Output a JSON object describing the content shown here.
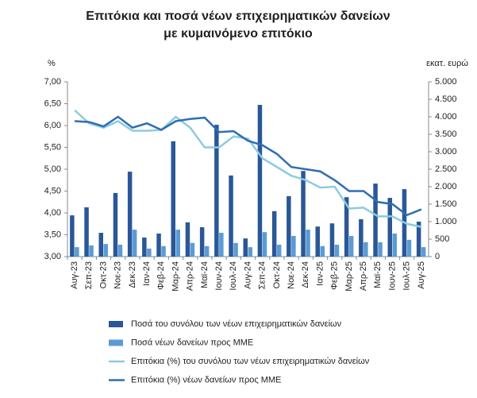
{
  "chart_data": {
    "type": "bar",
    "title": "Επιτόκια και ποσά νέων επιχειρηματικών δανείων με κυμαινόμενο επιτόκιο",
    "y_label": "%",
    "y2_label": "εκατ. ευρώ",
    "categories": [
      "Αυγ-23",
      "Σεπ-23",
      "Οκτ-23",
      "Νοε-23",
      "Δεκ-23",
      "Ιαν-24",
      "Φεβ-24",
      "Μαρ-24",
      "Απρ-24",
      "Μαϊ-24",
      "Ιουν-24",
      "Ιουλ-24",
      "Αυγ-24",
      "Σεπ-24",
      "Οκτ-24",
      "Νοε-24",
      "Δεκ-24",
      "Ιαν-25",
      "Φεβ-25",
      "Μαρ-25",
      "Απρ-25",
      "Μαϊ-25",
      "Ιουν-25",
      "Ιουλ-25",
      "Αυγ-25"
    ],
    "ylim": [
      3,
      7
    ],
    "yticks": [
      {
        "value": 3,
        "label": "3,00"
      },
      {
        "value": 3.5,
        "label": "3,50"
      },
      {
        "value": 4,
        "label": "4,00"
      },
      {
        "value": 4.5,
        "label": "4,50"
      },
      {
        "value": 5,
        "label": "5,00"
      },
      {
        "value": 5.5,
        "label": "5,50"
      },
      {
        "value": 6,
        "label": "6,00"
      },
      {
        "value": 6.5,
        "label": "6,50"
      },
      {
        "value": 7,
        "label": "7,00"
      }
    ],
    "y2lim": [
      0,
      5000
    ],
    "y2ticks": [
      0,
      500,
      {
        "value": 1000,
        "label": "1.000"
      },
      {
        "value": 1500,
        "label": "1.500"
      },
      {
        "value": 2000,
        "label": "2.000"
      },
      {
        "value": 2500,
        "label": "2.500"
      },
      {
        "value": 3000,
        "label": "3.000"
      },
      {
        "value": 3500,
        "label": "3.500"
      },
      {
        "value": 4000,
        "label": "4.000"
      },
      {
        "value": 4500,
        "label": "4.500"
      },
      {
        "value": 5000,
        "label": "5.000"
      }
    ],
    "legend": "bottom",
    "series": [
      {
        "name": "Ποσά του συνόλου των νέων επιχειρηματικών δανείων",
        "type": "bar",
        "axis": "y2",
        "color": "#2b5797",
        "values": [
          1180,
          1410,
          680,
          1820,
          2430,
          545,
          660,
          3300,
          980,
          840,
          3770,
          2320,
          520,
          4340,
          1300,
          1730,
          2450,
          860,
          950,
          1700,
          1070,
          2090,
          1680,
          1930,
          1000
        ]
      },
      {
        "name": "Ποσά νέων δανείων προς ΜΜΕ",
        "type": "bar",
        "axis": "y2",
        "color": "#5b9bd5",
        "values": [
          270,
          320,
          360,
          340,
          770,
          230,
          300,
          770,
          390,
          300,
          680,
          390,
          270,
          700,
          340,
          590,
          770,
          300,
          340,
          590,
          410,
          410,
          660,
          480,
          270
        ]
      },
      {
        "name": "Επιτόκια (%) του συνόλου των νέων επιχειρηματικών δανείων",
        "type": "line",
        "axis": "y",
        "color": "#8ccbe0",
        "values": [
          6.35,
          6.05,
          5.95,
          6.1,
          5.88,
          5.88,
          5.9,
          6.2,
          5.95,
          5.5,
          5.5,
          5.75,
          5.7,
          5.25,
          5.05,
          4.85,
          4.75,
          4.58,
          4.6,
          4.1,
          4.12,
          3.92,
          3.92,
          3.75,
          3.68
        ]
      },
      {
        "name": "Επιτόκια (%) νέων δανείων προς ΜΜΕ",
        "type": "line",
        "axis": "y",
        "color": "#2e6db4",
        "values": [
          6.1,
          6.08,
          5.98,
          6.2,
          5.95,
          6.05,
          5.9,
          6.1,
          6.15,
          6.18,
          5.85,
          5.87,
          5.65,
          5.55,
          5.35,
          5.05,
          5.0,
          4.95,
          4.75,
          4.5,
          4.5,
          4.25,
          4.2,
          3.95,
          4.08
        ]
      }
    ]
  }
}
